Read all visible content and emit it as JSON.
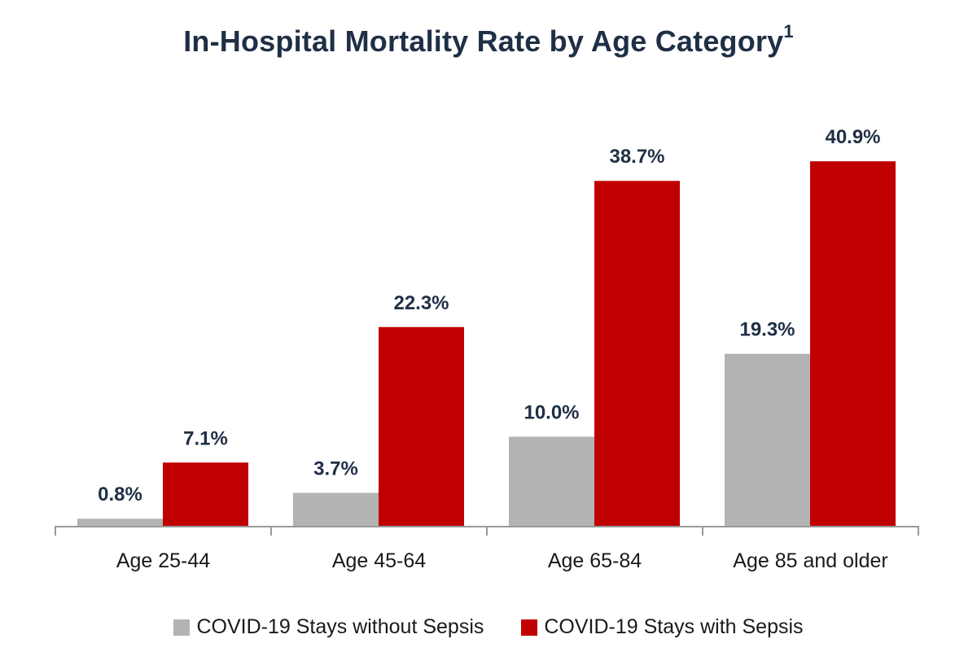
{
  "chart_data": {
    "type": "bar",
    "title": "In-Hospital Mortality Rate by Age Category",
    "title_superscript": "1",
    "categories": [
      "Age 25-44",
      "Age 45-64",
      "Age 65-84",
      "Age 85 and older"
    ],
    "series": [
      {
        "name": "COVID-19 Stays without Sepsis",
        "color": "#b3b3b3",
        "values": [
          0.8,
          3.7,
          10.0,
          19.3
        ],
        "labels": [
          "0.8%",
          "3.7%",
          "10.0%",
          "19.3%"
        ]
      },
      {
        "name": "COVID-19 Stays with Sepsis",
        "color": "#c00000",
        "values": [
          7.1,
          22.3,
          38.7,
          40.9
        ],
        "labels": [
          "7.1%",
          "22.3%",
          "38.7%",
          "40.9%"
        ]
      }
    ],
    "xlabel": "",
    "ylabel": "",
    "ylim": [
      0,
      45
    ],
    "grid": false,
    "legend_position": "bottom"
  }
}
